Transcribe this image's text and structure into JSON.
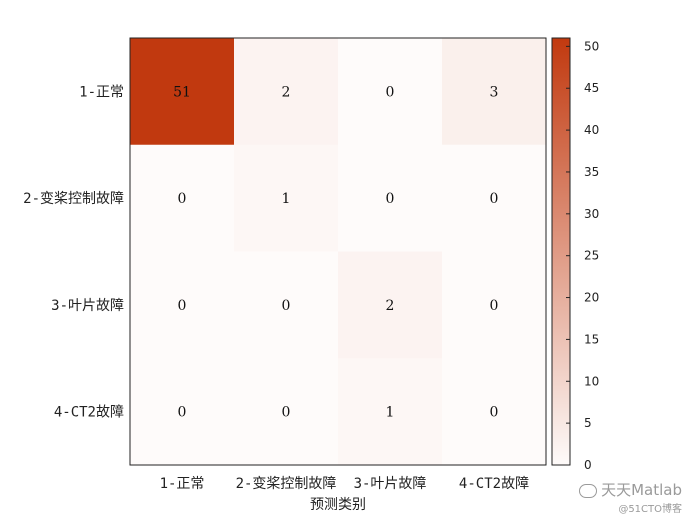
{
  "chart_data": {
    "type": "heatmap",
    "xlabel": "预测类别",
    "ylabel": "",
    "x_categories": [
      "1-正常",
      "2-变桨控制故障",
      "3-叶片故障",
      "4-CT2故障"
    ],
    "y_categories": [
      "1-正常",
      "2-变桨控制故障",
      "3-叶片故障",
      "4-CT2故障"
    ],
    "values": [
      [
        51,
        2,
        0,
        3
      ],
      [
        0,
        1,
        0,
        0
      ],
      [
        0,
        0,
        2,
        0
      ],
      [
        0,
        0,
        1,
        0
      ]
    ],
    "colorbar": {
      "range": [
        0,
        51
      ],
      "ticks": [
        0,
        5,
        10,
        15,
        20,
        25,
        30,
        35,
        40,
        45,
        50
      ],
      "color_low": "#fefbfa",
      "color_high": "#c1390f"
    }
  },
  "watermark": {
    "main": "天天Matlab",
    "sub": "@51CTO博客"
  }
}
